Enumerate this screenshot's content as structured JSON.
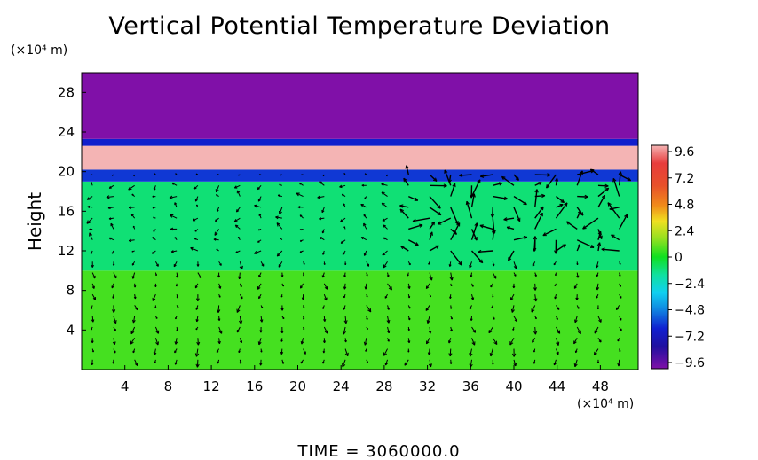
{
  "chart_data": {
    "type": "heatmap",
    "title": "Vertical Potential Temperature Deviation",
    "ylabel": "Height",
    "xlabel": "",
    "x_unit": "(×10⁴ m)",
    "y_unit": "(×10⁴ m)",
    "x_ticks": [
      4,
      8,
      12,
      16,
      20,
      24,
      28,
      32,
      36,
      40,
      44,
      48
    ],
    "y_ticks": [
      4,
      8,
      12,
      16,
      20,
      24,
      28
    ],
    "xlim": [
      0,
      51.5
    ],
    "ylim": [
      0,
      30
    ],
    "colorbar": {
      "ticks": [
        "9.6",
        "7.2",
        "4.8",
        "2.4",
        "0",
        "−2.4",
        "−4.8",
        "−7.2",
        "−9.6"
      ],
      "range": [
        -9.6,
        9.6
      ]
    },
    "layers": [
      {
        "y_range": [
          0,
          10
        ],
        "value": 0.5
      },
      {
        "y_range": [
          10,
          19
        ],
        "value": -0.8
      },
      {
        "y_range": [
          19,
          20.2
        ],
        "value": -4.5
      },
      {
        "y_range": [
          20.2,
          22.6
        ],
        "value": 9.6
      },
      {
        "y_range": [
          22.6,
          23.3
        ],
        "value": -5
      },
      {
        "y_range": [
          23.3,
          30
        ],
        "value": -9.6
      }
    ],
    "vector_field": true,
    "footer": "TIME  =  3060000.0"
  }
}
